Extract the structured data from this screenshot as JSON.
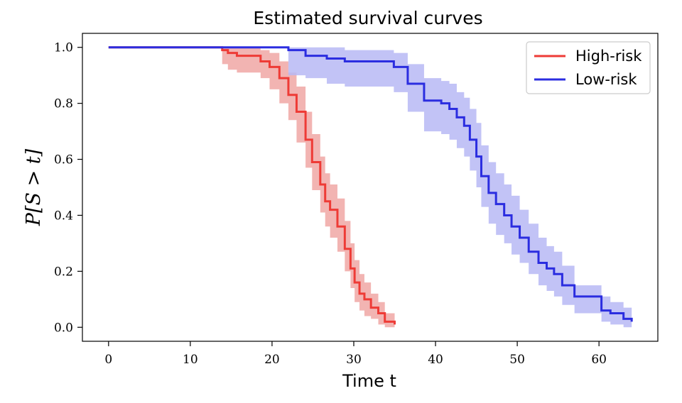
{
  "chart_data": {
    "type": "line",
    "title": "Estimated survival curves",
    "xlabel": "Time t",
    "ylabel": "P[S > t]",
    "xlim": [
      -3.2,
      67.2
    ],
    "ylim": [
      -0.05,
      1.05
    ],
    "xticks": [
      0,
      10,
      20,
      30,
      40,
      50,
      60
    ],
    "yticks": [
      0.0,
      0.2,
      0.4,
      0.6,
      0.8,
      1.0
    ],
    "xtick_labels": [
      "0",
      "10",
      "20",
      "30",
      "40",
      "50",
      "60"
    ],
    "ytick_labels": [
      "0.0",
      "0.2",
      "0.4",
      "0.6",
      "0.8",
      "1.0"
    ],
    "grid": false,
    "legend_position": "top-right",
    "series": [
      {
        "name": "High-risk",
        "color": "#ee3b36",
        "band_color": "#f0a7a5",
        "step": true,
        "x": [
          0,
          13.9,
          14.6,
          15.7,
          18.6,
          19.7,
          20.9,
          22.0,
          23.0,
          24.1,
          24.9,
          25.9,
          26.5,
          27.1,
          28.0,
          28.9,
          29.6,
          30.1,
          30.7,
          31.3,
          32.1,
          33.0,
          33.8,
          35.0
        ],
        "y": [
          1.0,
          0.99,
          0.98,
          0.97,
          0.95,
          0.93,
          0.89,
          0.83,
          0.77,
          0.67,
          0.59,
          0.51,
          0.45,
          0.42,
          0.36,
          0.28,
          0.21,
          0.16,
          0.12,
          0.1,
          0.07,
          0.05,
          0.02,
          0.01
        ],
        "lower": [
          1.0,
          0.94,
          0.92,
          0.91,
          0.89,
          0.85,
          0.8,
          0.74,
          0.66,
          0.57,
          0.49,
          0.41,
          0.36,
          0.32,
          0.27,
          0.2,
          0.14,
          0.09,
          0.06,
          0.04,
          0.03,
          0.01,
          0.0,
          0.0
        ],
        "upper": [
          1.0,
          1.0,
          1.0,
          1.0,
          0.99,
          0.98,
          0.95,
          0.91,
          0.86,
          0.77,
          0.69,
          0.61,
          0.55,
          0.51,
          0.46,
          0.38,
          0.3,
          0.24,
          0.19,
          0.16,
          0.12,
          0.09,
          0.05,
          0.03
        ]
      },
      {
        "name": "Low-risk",
        "color": "#2b2de0",
        "band_color": "#b7b8f5",
        "step": true,
        "x": [
          0,
          22.0,
          24.1,
          26.7,
          28.9,
          30.7,
          34.9,
          36.6,
          38.6,
          40.7,
          41.7,
          42.6,
          43.5,
          44.2,
          45.0,
          45.6,
          46.5,
          47.4,
          48.4,
          49.3,
          50.3,
          51.4,
          52.6,
          53.6,
          54.5,
          55.5,
          57.0,
          60.3,
          61.4,
          63.0,
          64.0
        ],
        "y": [
          1.0,
          0.99,
          0.97,
          0.96,
          0.95,
          0.95,
          0.93,
          0.87,
          0.81,
          0.8,
          0.78,
          0.75,
          0.72,
          0.67,
          0.61,
          0.54,
          0.48,
          0.44,
          0.4,
          0.36,
          0.32,
          0.27,
          0.23,
          0.21,
          0.19,
          0.15,
          0.11,
          0.06,
          0.05,
          0.03,
          0.02
        ],
        "lower": [
          1.0,
          0.9,
          0.89,
          0.87,
          0.86,
          0.86,
          0.84,
          0.77,
          0.7,
          0.69,
          0.67,
          0.64,
          0.61,
          0.56,
          0.5,
          0.43,
          0.37,
          0.33,
          0.3,
          0.26,
          0.23,
          0.19,
          0.15,
          0.13,
          0.11,
          0.08,
          0.05,
          0.02,
          0.01,
          0.0,
          0.0
        ],
        "upper": [
          1.0,
          1.0,
          1.0,
          1.0,
          0.99,
          0.99,
          0.98,
          0.94,
          0.89,
          0.88,
          0.87,
          0.84,
          0.82,
          0.78,
          0.73,
          0.65,
          0.59,
          0.55,
          0.51,
          0.47,
          0.42,
          0.37,
          0.32,
          0.29,
          0.27,
          0.22,
          0.15,
          0.11,
          0.09,
          0.07,
          0.05
        ]
      }
    ]
  }
}
